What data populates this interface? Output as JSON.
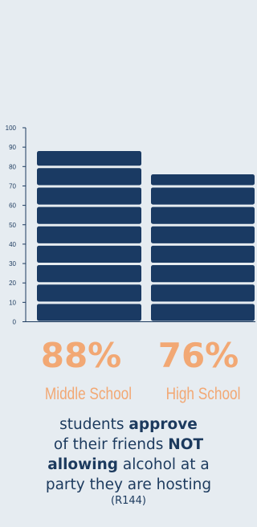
{
  "chart_data": {
    "type": "bar",
    "categories": [
      "Middle School",
      "High School"
    ],
    "values": [
      88,
      76
    ],
    "value_labels": [
      "88%",
      "76%"
    ],
    "ylim": [
      0,
      100
    ],
    "yticks": [
      0,
      10,
      20,
      30,
      40,
      50,
      60,
      70,
      80,
      90,
      100
    ],
    "title": "",
    "xlabel": "",
    "ylabel": "",
    "grid": false,
    "bar_color": "#1a3a63",
    "accent_color": "#f2a874"
  },
  "caption": {
    "line1_pre": "students ",
    "line1_bold": "approve",
    "line2_pre": "of their friends ",
    "line2_bold": "NOT",
    "line3_bold": "allowing",
    "line3_post": " alcohol at a",
    "line4": "party they are hosting",
    "source": "(R144)"
  }
}
